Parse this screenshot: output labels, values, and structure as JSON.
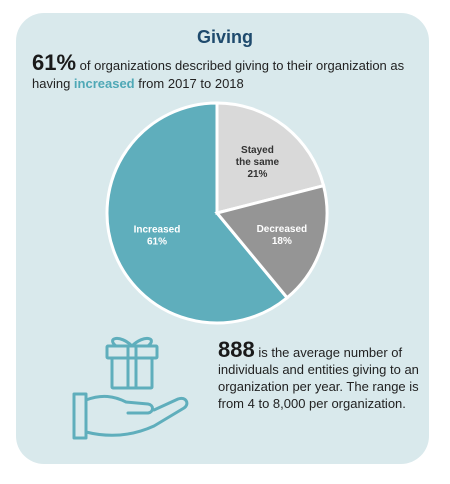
{
  "title": "Giving",
  "headline": {
    "pct": "61%",
    "text_before": " of organizations described giving to their organization as having ",
    "accent": "increased",
    "text_after": " from 2017 to 2018"
  },
  "chart_data": {
    "type": "pie",
    "slices": [
      {
        "label_lines": [
          "Increased",
          "61%"
        ],
        "value": 61,
        "color": "#5faebc",
        "text_color": "#ffffff"
      },
      {
        "label_lines": [
          "Stayed",
          "the same",
          "21%"
        ],
        "value": 21,
        "color": "#d9d9d9",
        "text_color": "#333333"
      },
      {
        "label_lines": [
          "Decreased",
          "18%"
        ],
        "value": 18,
        "color": "#959595",
        "text_color": "#ffffff"
      }
    ]
  },
  "stat": {
    "number": "888",
    "text": " is the average number of individuals and entities giving to an organization per year. The range is from 4 to 8,000 per organization."
  },
  "icon": {
    "name": "hand-gift-icon",
    "color": "#5faebc"
  }
}
